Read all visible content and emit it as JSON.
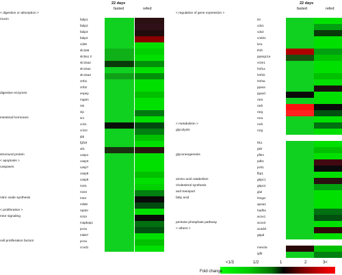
{
  "left": {
    "header_title": "22 days",
    "col_labels": [
      "fasted",
      "refed"
    ],
    "categories": [
      {
        "label": "< digestion or absorption >",
        "row": 0
      },
      {
        "label": "mucin",
        "row": 1
      },
      {
        "label": "digestive enzymes",
        "row": 13
      },
      {
        "label": "intestinal hormones",
        "row": 17
      },
      {
        "label": "structural protein",
        "row": 23
      },
      {
        "label": "< apoptosis >",
        "row": 24
      },
      {
        "label": "caspases",
        "row": 25
      },
      {
        "label": "nitric oxide synthesis",
        "row": 30
      },
      {
        "label": "< proliferation >",
        "row": 32
      },
      {
        "label": "mtor signaling",
        "row": 33
      },
      {
        "label": "cell proliferation factors",
        "row": 37
      }
    ],
    "genes": [
      {
        "name": "fabp1",
        "row": 1,
        "f": "#10d020",
        "r": "#2a1010"
      },
      {
        "name": "fabp2",
        "row": 2,
        "f": "#10d020",
        "r": "#301018"
      },
      {
        "name": "fabp3",
        "row": 3,
        "f": "#10d020",
        "r": "#200c0c"
      },
      {
        "name": "fabp2",
        "row": 4,
        "f": "#10d020",
        "r": "#8a0000"
      },
      {
        "name": "cd36",
        "row": 5,
        "f": "#10d020",
        "r": "#00e000"
      },
      {
        "name": "slc2a5",
        "row": 6,
        "f": "#10b018",
        "r": "#00d000"
      },
      {
        "name": "slc5a1 2",
        "row": 7,
        "f": "#10b018",
        "r": "#00e000"
      },
      {
        "name": "slc15a2",
        "row": 8,
        "f": "#0a3a0a",
        "r": "#02900a"
      },
      {
        "name": "slc15a1",
        "row": 9,
        "f": "#10d020",
        "r": "#00e000"
      },
      {
        "name": "slc15a3",
        "row": 10,
        "f": "#10a018",
        "r": "#02900a"
      },
      {
        "name": "ctrb1",
        "row": 11,
        "f": "#10d020",
        "r": "#00e000"
      },
      {
        "name": "ctrb2",
        "row": 12,
        "f": "#10d020",
        "r": "#00e000"
      },
      {
        "name": "enpep",
        "row": 13,
        "f": "#10d020",
        "r": "#00c000"
      },
      {
        "name": "mgam",
        "row": 14,
        "f": "#10d020",
        "r": "#00e000"
      },
      {
        "name": "nts",
        "row": 15,
        "f": "#10d020",
        "r": "#00e000"
      },
      {
        "name": "vip",
        "row": 16,
        "f": "#10d020",
        "r": "#007a10"
      },
      {
        "name": "sct",
        "row": 17,
        "f": "#10d020",
        "r": "#00e000"
      },
      {
        "name": "cck1",
        "row": 18,
        "f": "#0a0f0a",
        "r": "#004a10"
      },
      {
        "name": "cck1r",
        "row": 19,
        "f": "#10d020",
        "r": "#008010"
      },
      {
        "name": "gip",
        "row": 20,
        "f": "#10d020",
        "r": "#00c000"
      },
      {
        "name": "fgf19",
        "row": 21,
        "f": "#10d020",
        "r": "#00e000"
      },
      {
        "name": "vil1",
        "row": 22,
        "f": "#1a3010",
        "r": "#2a1810"
      },
      {
        "name": "casp1",
        "row": 23,
        "f": "#10d020",
        "r": "#00e000"
      },
      {
        "name": "casp3",
        "row": 24,
        "f": "#10d020",
        "r": "#00e000"
      },
      {
        "name": "casp7",
        "row": 25,
        "f": "#10d020",
        "r": "#00e000"
      },
      {
        "name": "casp8",
        "row": 26,
        "f": "#10d020",
        "r": "#00c000"
      },
      {
        "name": "casp9",
        "row": 27,
        "f": "#10d020",
        "r": "#00e000"
      },
      {
        "name": "nos1",
        "row": 28,
        "f": "#10d020",
        "r": "#00d000"
      },
      {
        "name": "nos3",
        "row": 29,
        "f": "#10d020",
        "r": "#008010"
      },
      {
        "name": "mtor",
        "row": 30,
        "f": "#10d020",
        "r": "#0a0a0a"
      },
      {
        "name": "mlst8",
        "row": 31,
        "f": "#10d020",
        "r": "#004a10"
      },
      {
        "name": "raptor",
        "row": 32,
        "f": "#10d020",
        "r": "#00e000"
      },
      {
        "name": "rictor",
        "row": 33,
        "f": "#10d020",
        "r": "#0a0a0a"
      },
      {
        "name": "mapkap1",
        "row": 34,
        "f": "#10d020",
        "r": "#007010"
      },
      {
        "name": "pcna",
        "row": 35,
        "f": "#10d020",
        "r": "#005010"
      },
      {
        "name": "mki67",
        "row": 36,
        "f": "#10d020",
        "r": "#00e000"
      },
      {
        "name": "pcna",
        "row": 37,
        "f": "#10d020",
        "r": "#00c000"
      },
      {
        "name": "ccnd1",
        "row": 38,
        "f": "#10d020",
        "r": "#00e000"
      }
    ]
  },
  "right": {
    "header_title": "22 days",
    "col_labels": [
      "fasted",
      "refed"
    ],
    "categories": [
      {
        "label": "< regulation of gene expression >",
        "row": 0
      },
      {
        "label": "< metabolism >",
        "row": 18
      },
      {
        "label": "glycolysis",
        "row": 19
      },
      {
        "label": "glyconeogenesis",
        "row": 23
      },
      {
        "label": "amino acid catabolism",
        "row": 27
      },
      {
        "label": "cholesterol synthesis",
        "row": 28
      },
      {
        "label": "and transport",
        "row": 29
      },
      {
        "label": "fatty acid",
        "row": 30
      },
      {
        "label": "pentose phosphate pathway",
        "row": 34
      },
      {
        "label": "< others >",
        "row": 35
      }
    ],
    "genes": [
      {
        "name": "tsr",
        "row": 1,
        "f": "#10d020",
        "r": "#00e000"
      },
      {
        "name": "cdx1",
        "row": 2,
        "f": "#10d020",
        "r": "#00a010"
      },
      {
        "name": "cdx2",
        "row": 3,
        "f": "#10d020",
        "r": "#0a3a0a"
      },
      {
        "name": "crebl1",
        "row": 4,
        "f": "#10d020",
        "r": "#00e000"
      },
      {
        "name": "lxra",
        "row": 5,
        "f": "#10d020",
        "r": "#00e000"
      },
      {
        "name": "thrb",
        "row": 6,
        "f": "#b00000",
        "r": "#00a010"
      },
      {
        "name": "ppargc1a",
        "row": 7,
        "f": "#1a5010",
        "r": "#00c000"
      },
      {
        "name": "nr2e1",
        "row": 8,
        "f": "#10d020",
        "r": "#00e000"
      },
      {
        "name": "hnf1a",
        "row": 9,
        "f": "#10d020",
        "r": "#00e000"
      },
      {
        "name": "hnf1b",
        "row": 10,
        "f": "#10d020",
        "r": "#00c000"
      },
      {
        "name": "hnf4a",
        "row": 11,
        "f": "#10d020",
        "r": "#00e000"
      },
      {
        "name": "ppara",
        "row": 12,
        "f": "#10d020",
        "r": "#1a1010"
      },
      {
        "name": "ppard",
        "row": 13,
        "f": "#0a0a0a",
        "r": "#00e000"
      },
      {
        "name": "rara",
        "row": 14,
        "f": "#10d020",
        "r": "#00e000"
      },
      {
        "name": "rarb",
        "row": 15,
        "f": "#ff1010",
        "r": "#0a0a0a"
      },
      {
        "name": "rarg",
        "row": 16,
        "f": "#ff2020",
        "r": "#005010"
      },
      {
        "name": "rora",
        "row": 17,
        "f": "#10d020",
        "r": "#00e000"
      },
      {
        "name": "rorb",
        "row": 18,
        "f": "#10d020",
        "r": "#007010"
      },
      {
        "name": "rorg",
        "row": 19,
        "f": "#10d020",
        "r": "#00e000"
      },
      {
        "name": "hk1",
        "row": 21,
        "f": "#10d020",
        "r": "#00e000"
      },
      {
        "name": "pklr",
        "row": 22,
        "f": "#10d020",
        "r": "#00c000"
      },
      {
        "name": "pfkm",
        "row": 23,
        "f": "#10d020",
        "r": "#00e000"
      },
      {
        "name": "pdk1",
        "row": 24,
        "f": "#10d020",
        "r": "#400810"
      },
      {
        "name": "pck1",
        "row": 25,
        "f": "#10d020",
        "r": "#0a0a0a"
      },
      {
        "name": "fbp1",
        "row": 26,
        "f": "#10d020",
        "r": "#00e000"
      },
      {
        "name": "g6pc1",
        "row": 27,
        "f": "#10d020",
        "r": "#2a1010"
      },
      {
        "name": "g6pc2",
        "row": 28,
        "f": "#10d020",
        "r": "#00a010"
      },
      {
        "name": "glul",
        "row": 29,
        "f": "#10d020",
        "r": "#00e000"
      },
      {
        "name": "hmgcr",
        "row": 30,
        "f": "#10d020",
        "r": "#00e000"
      },
      {
        "name": "apoa1",
        "row": 31,
        "f": "#10d020",
        "r": "#00e000"
      },
      {
        "name": "hadha",
        "row": 32,
        "f": "#10d020",
        "r": "#007010"
      },
      {
        "name": "acox1",
        "row": 33,
        "f": "#10d020",
        "r": "#005010"
      },
      {
        "name": "acox3",
        "row": 34,
        "f": "#10d020",
        "r": "#00e000"
      },
      {
        "name": "acadvl",
        "row": 35,
        "f": "#10d020",
        "r": "#300808"
      },
      {
        "name": "g6pd",
        "row": 36,
        "f": "#10d020",
        "r": "#00e000"
      },
      {
        "name": "mexcla",
        "row": 38,
        "f": "#2a0808",
        "r": "#00c000"
      },
      {
        "name": "igf5",
        "row": 39,
        "f": "#10d020",
        "r": "#008010"
      }
    ]
  },
  "legend": {
    "labels": [
      "<1/3",
      "1/2",
      "1",
      "2",
      "3<"
    ],
    "title": "Fold change"
  }
}
